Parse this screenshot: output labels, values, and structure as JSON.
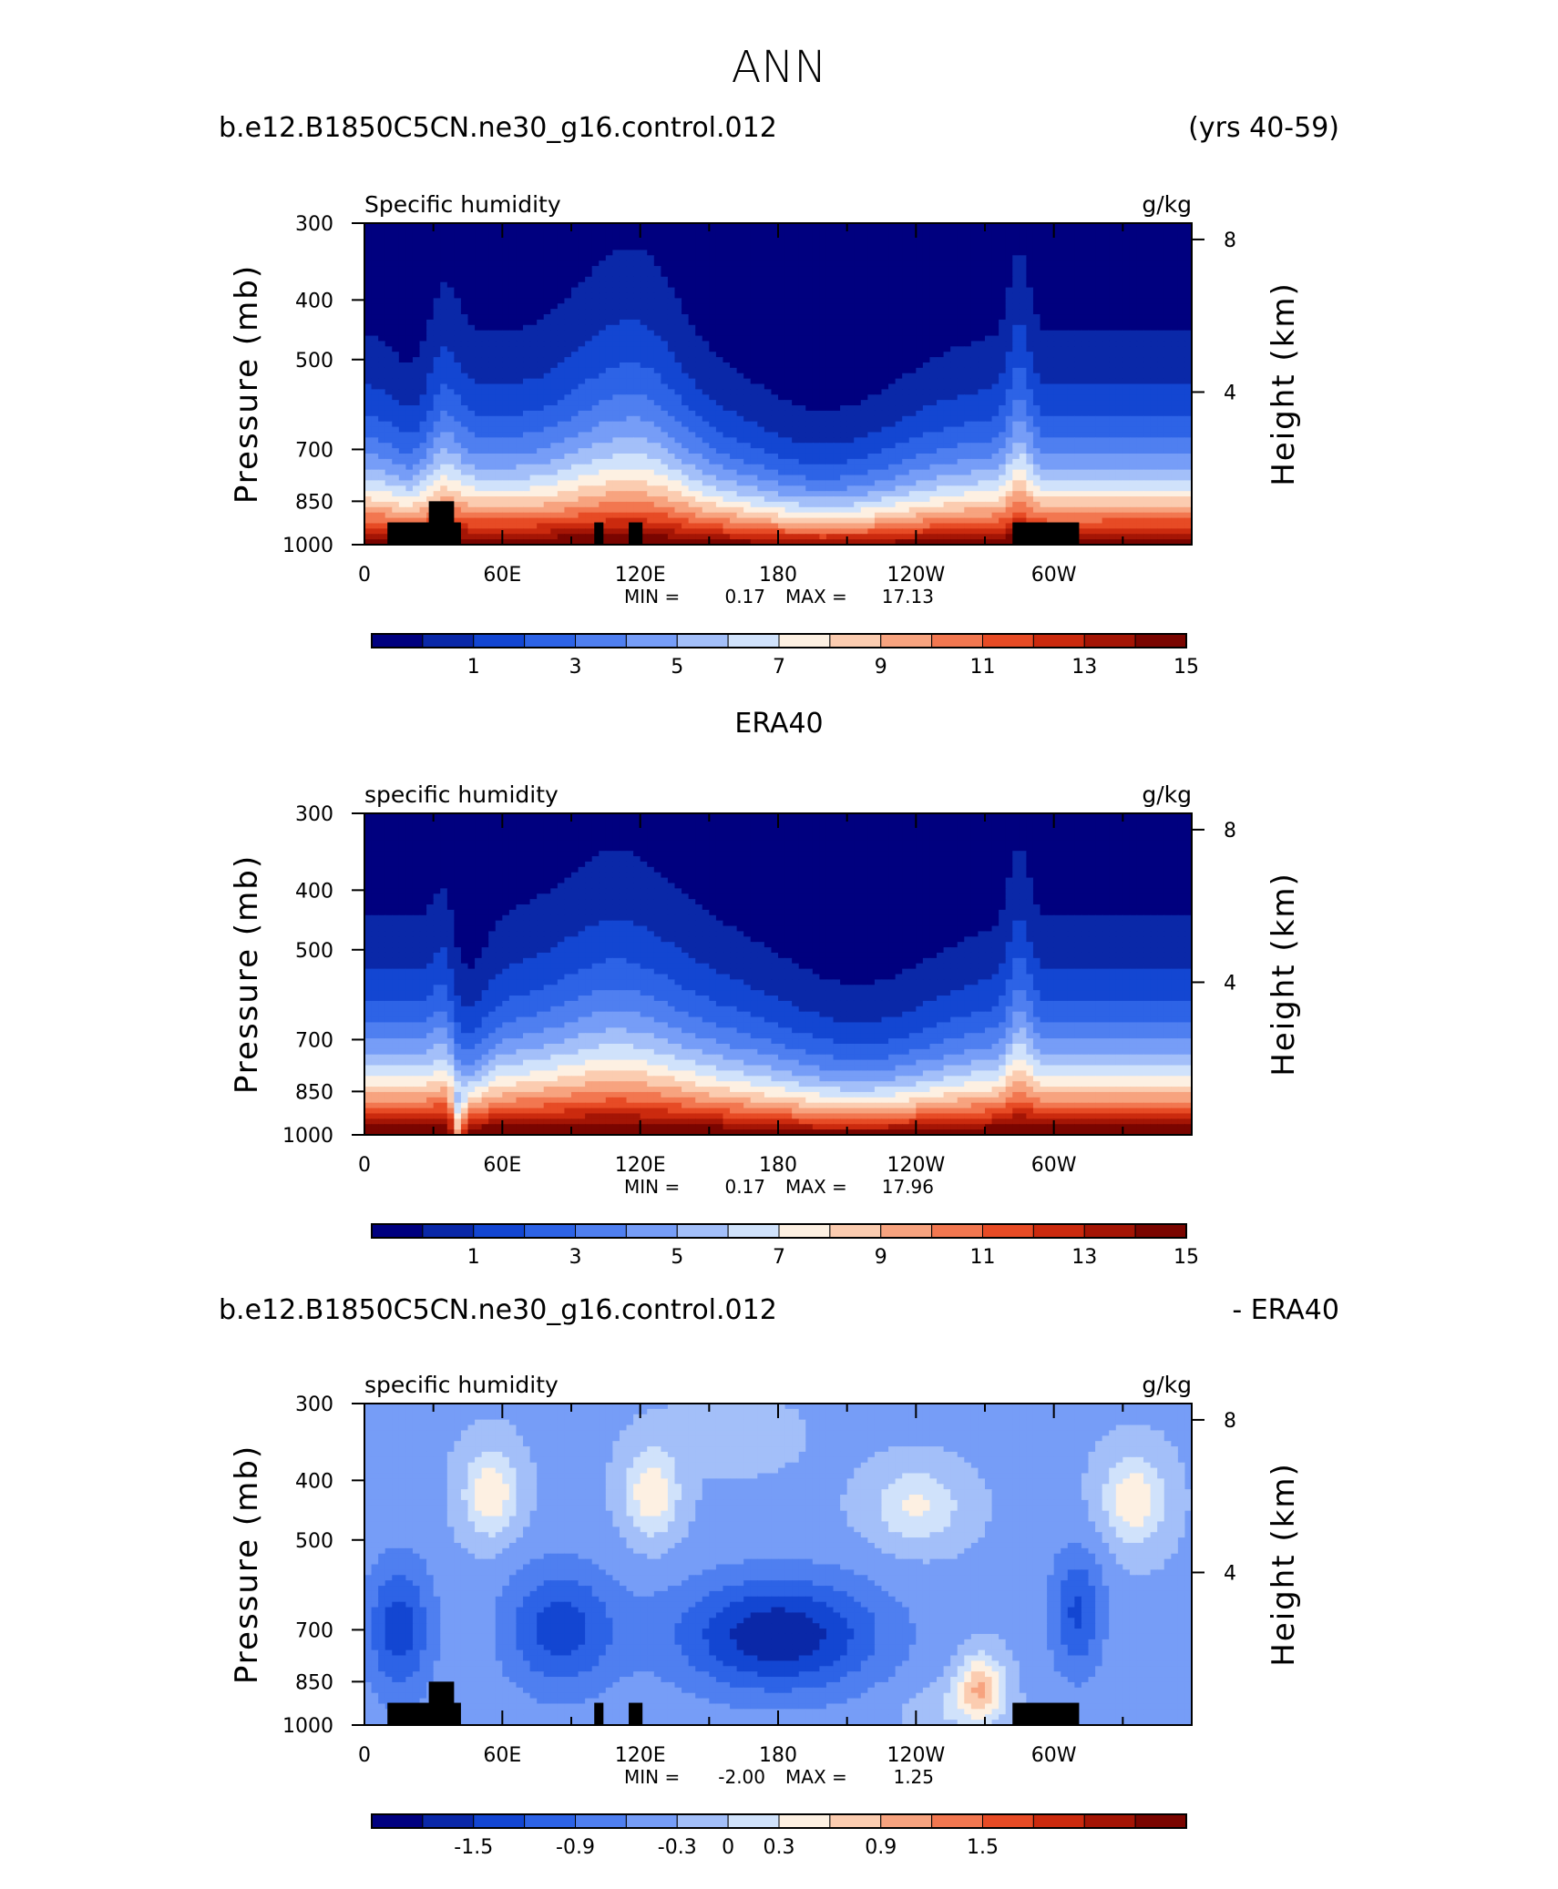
{
  "figure": {
    "title": "ANN"
  },
  "chart_data": [
    {
      "type": "heatmap",
      "header_left": "b.e12.B1850C5CN.ne30_g16.control.012",
      "header_right": "(yrs 40-59)",
      "variable": "Specific humidity",
      "units": "g/kg",
      "ylabel": "Pressure (mb)",
      "y2label": "Height (km)",
      "x_ticks": [
        "0",
        "60E",
        "120E",
        "180",
        "120W",
        "60W"
      ],
      "y_ticks": [
        300,
        400,
        500,
        700,
        850,
        1000
      ],
      "y2_ticks": [
        8,
        4
      ],
      "stats": {
        "min_label": "MIN =",
        "min": "0.17",
        "max_label": "MAX =",
        "max": "17.13"
      },
      "colorbar": {
        "levels": [
          1,
          2,
          3,
          4,
          5,
          6,
          7,
          8,
          9,
          10,
          11,
          12,
          13,
          14,
          15
        ],
        "labels": [
          "1",
          "3",
          "5",
          "7",
          "9",
          "11",
          "13",
          "15"
        ]
      },
      "mode": "abs"
    },
    {
      "type": "heatmap",
      "header_center": "ERA40",
      "variable": "specific humidity",
      "units": "g/kg",
      "ylabel": "Pressure (mb)",
      "y2label": "Height (km)",
      "x_ticks": [
        "0",
        "60E",
        "120E",
        "180",
        "120W",
        "60W"
      ],
      "y_ticks": [
        300,
        400,
        500,
        700,
        850,
        1000
      ],
      "y2_ticks": [
        8,
        4
      ],
      "stats": {
        "min_label": "MIN =",
        "min": "0.17",
        "max_label": "MAX =",
        "max": "17.96"
      },
      "colorbar": {
        "levels": [
          1,
          2,
          3,
          4,
          5,
          6,
          7,
          8,
          9,
          10,
          11,
          12,
          13,
          14,
          15
        ],
        "labels": [
          "1",
          "3",
          "5",
          "7",
          "9",
          "11",
          "13",
          "15"
        ]
      },
      "mode": "abs"
    },
    {
      "type": "heatmap",
      "header_left": "b.e12.B1850C5CN.ne30_g16.control.012",
      "header_right": "- ERA40",
      "variable": "specific humidity",
      "units": "g/kg",
      "ylabel": "Pressure (mb)",
      "y2label": "Height (km)",
      "x_ticks": [
        "0",
        "60E",
        "120E",
        "180",
        "120W",
        "60W"
      ],
      "y_ticks": [
        300,
        400,
        500,
        700,
        850,
        1000
      ],
      "y2_ticks": [
        8,
        4
      ],
      "stats": {
        "min_label": "MIN =",
        "min": "-2.00",
        "max_label": "MAX =",
        "max": "1.25"
      },
      "colorbar": {
        "levels": [
          -1.8,
          -1.5,
          -1.2,
          -0.9,
          -0.6,
          -0.3,
          0,
          0.3,
          0.6,
          0.9,
          1.2,
          1.5,
          1.8,
          2.1,
          2.4
        ],
        "labels": [
          "-1.5",
          "-0.9",
          "-0.3",
          "0",
          "0.3",
          "0.9",
          "1.5"
        ]
      },
      "mode": "diff"
    }
  ],
  "colormap": [
    "#00007f",
    "#0a28a8",
    "#1346d2",
    "#2d63e6",
    "#4f7ff0",
    "#769df7",
    "#a3bff9",
    "#d0e2fb",
    "#fdf0e2",
    "#fbccb0",
    "#f7a37f",
    "#f27750",
    "#e74b25",
    "#cb2a0e",
    "#a41505",
    "#7a0500"
  ],
  "topography_color": "#000000"
}
